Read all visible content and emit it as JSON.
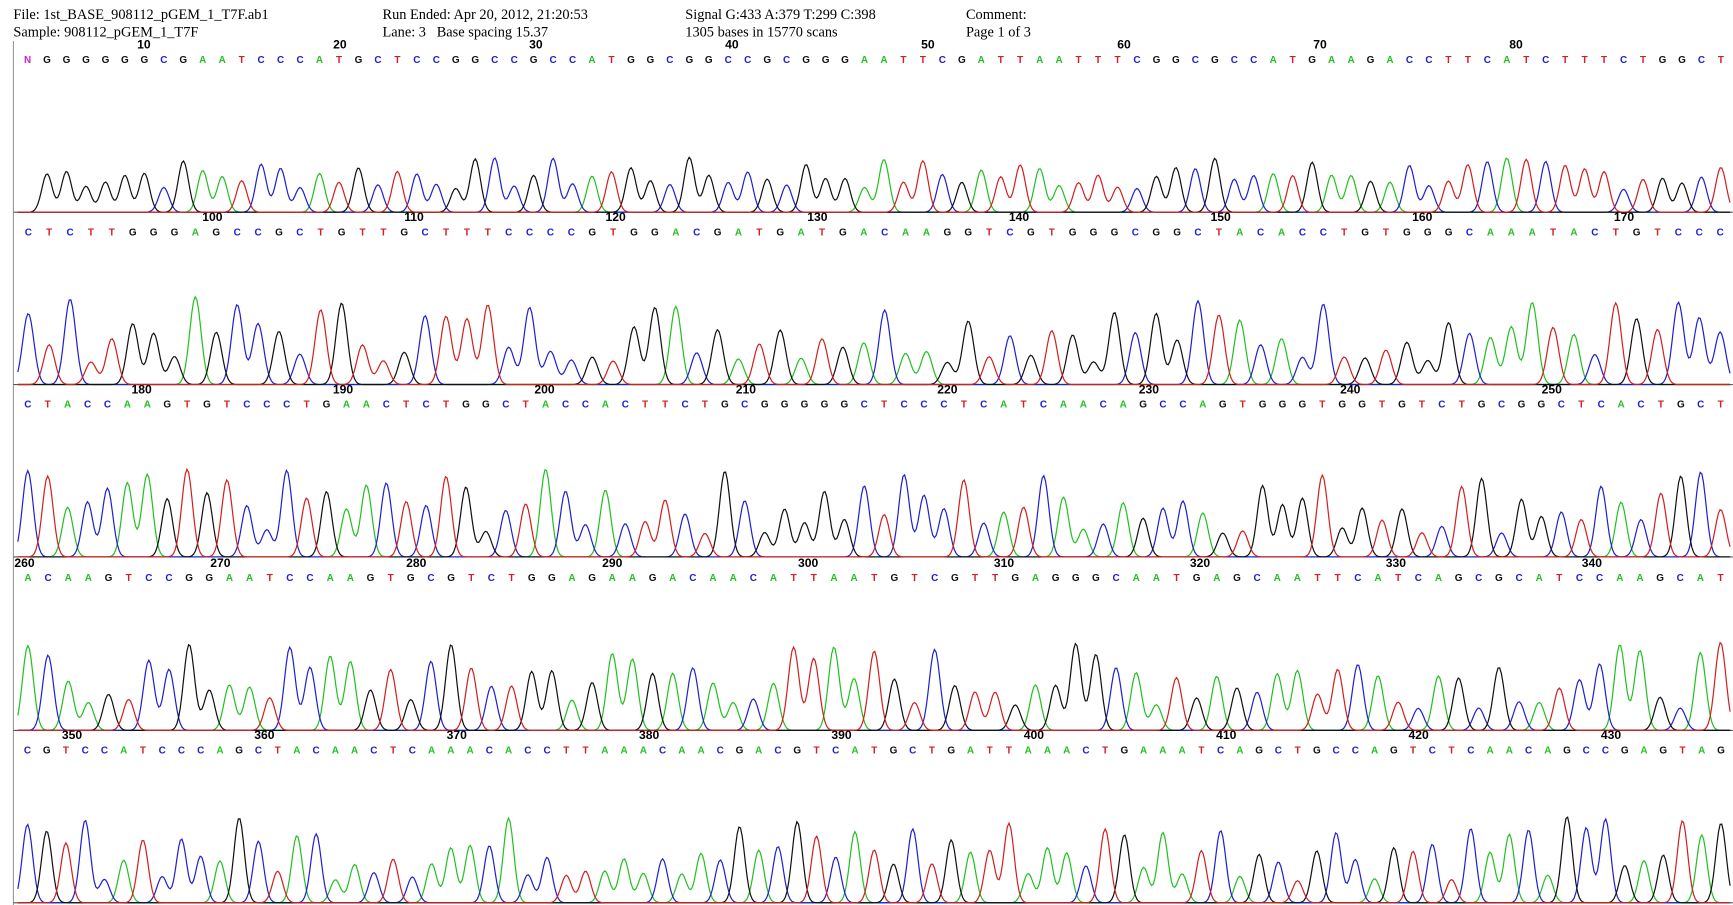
{
  "header": {
    "file": "File: 1st_BASE_908112_pGEM_1_T7F.ab1",
    "sample": "Sample: 908112_pGEM_1_T7F",
    "run_ended": "Run Ended: Apr 20, 2012, 21:20:53",
    "lane": "Lane: 3   Base spacing 15.37",
    "signal": "Signal G:433 A:379 T:299 C:398",
    "bases": "1305 bases in 15770 scans",
    "comment": "Comment:",
    "page": "Page 1 of 3"
  },
  "rows": [
    {
      "positions": [
        10,
        20,
        30,
        40,
        50,
        60,
        70,
        80
      ],
      "sequence": "NGGGGGGCGAATCCCATGCTCCGGCCGCCATGGCGGCCGCGGGAATTCGATTAATTTCGGCGCCATGAAGACCTTCATCTTTCTGGCT"
    },
    {
      "positions": [
        100,
        110,
        120,
        130,
        140,
        150,
        160,
        170
      ],
      "sequence": "CTCTTGGGAGCCGCTGTTGCTTTCCCCGTGGACGATGATGACAAGGTCGTGGGCGGCTACACCTGTGGGCAAATACTGTCCC"
    },
    {
      "positions": [
        180,
        190,
        200,
        210,
        220,
        230,
        240,
        250
      ],
      "sequence": "CTACCAAGTGTCCCTGAACTCTGGCTACCACTTCTGCGGGGGCTCCCTCATCAACAGCCAGTGGGTGGTGTCTGCGGCTCACTGCT"
    },
    {
      "positions": [
        260,
        270,
        280,
        290,
        300,
        310,
        320,
        330,
        340
      ],
      "sequence": "ACAAGTCCGGAATCCAAGTGCGTCTGGAGAAGACAACATTAATGTCGTTGAGGGCAATGAGCAATTCATCAGCGCATCCAAGCAT"
    },
    {
      "positions": [
        350,
        360,
        370,
        380,
        390,
        400,
        410,
        420,
        430
      ],
      "sequence": "CGTCCATCCCAGCTACAACTCAAACACCTTAAACAACGACGTCATGCTGATTAAACTGAAATCAGCTGCCAGTCTCAACAGCCGAGTAG"
    }
  ]
}
